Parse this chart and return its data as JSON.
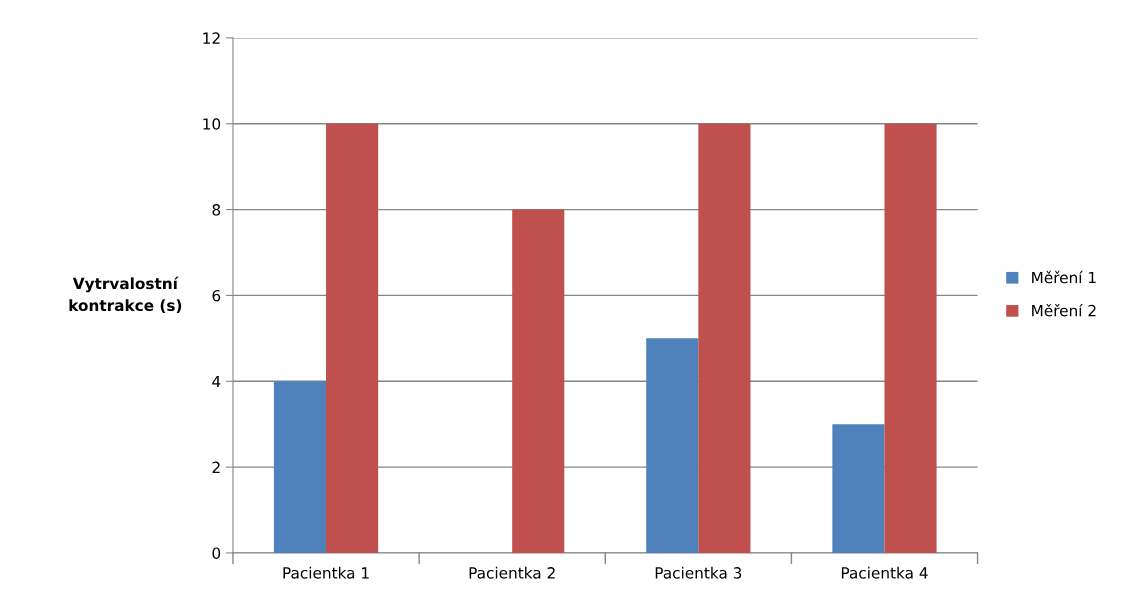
{
  "chart_data": {
    "type": "bar",
    "ylabel": "Vytrvalostní\nkontrakce (s)",
    "categories": [
      "Pacientka 1",
      "Pacientka 2",
      "Pacientka 3",
      "Pacientka 4"
    ],
    "series": [
      {
        "name": "Měření 1",
        "color": "#4f81bd",
        "values": [
          4,
          0,
          5,
          3
        ]
      },
      {
        "name": "Měření 2",
        "color": "#c0504d",
        "values": [
          10,
          8,
          10,
          10
        ]
      }
    ],
    "ylim": [
      0,
      12
    ],
    "yticks": [
      0,
      2,
      4,
      6,
      8,
      10,
      12
    ],
    "grid": "y",
    "legend": "right"
  }
}
